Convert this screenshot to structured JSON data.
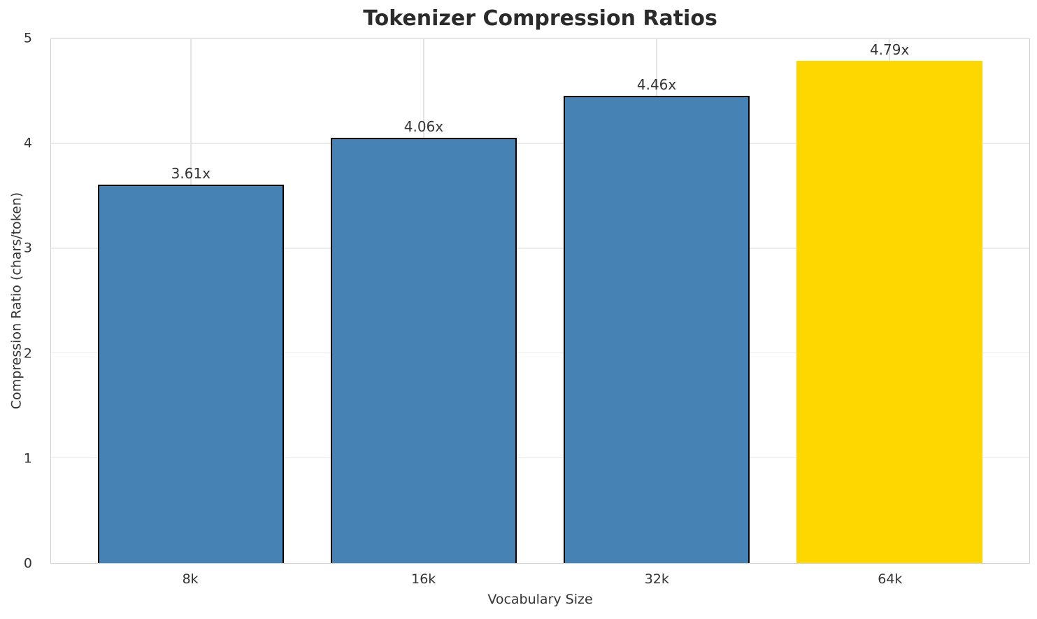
{
  "chart_data": {
    "type": "bar",
    "title": "Tokenizer Compression Ratios",
    "xlabel": "Vocabulary Size",
    "ylabel": "Compression Ratio (chars/token)",
    "categories": [
      "8k",
      "16k",
      "32k",
      "64k"
    ],
    "values": [
      3.61,
      4.06,
      4.46,
      4.79
    ],
    "value_labels": [
      "3.61x",
      "4.06x",
      "4.46x",
      "4.79x"
    ],
    "ylim": [
      0,
      5
    ],
    "yticks": [
      0,
      1,
      2,
      3,
      4,
      5
    ],
    "grid": true,
    "legend": "none",
    "bar_colors": [
      "#4682B4",
      "#4682B4",
      "#4682B4",
      "#FFD700"
    ],
    "bar_edge_colors": [
      "#000000",
      "#000000",
      "#000000",
      "none"
    ],
    "colors": {
      "base_bar": "#4682B4",
      "highlight_bar": "#FFD700",
      "bar_edge": "#000000",
      "grid_line": "#ebebeb",
      "spine": "#d2d2d2",
      "title_text": "#2b2b2b",
      "tick_text": "#333333"
    },
    "layout": {
      "xlim": [
        -0.6,
        3.6
      ],
      "bar_width": 0.8
    }
  }
}
